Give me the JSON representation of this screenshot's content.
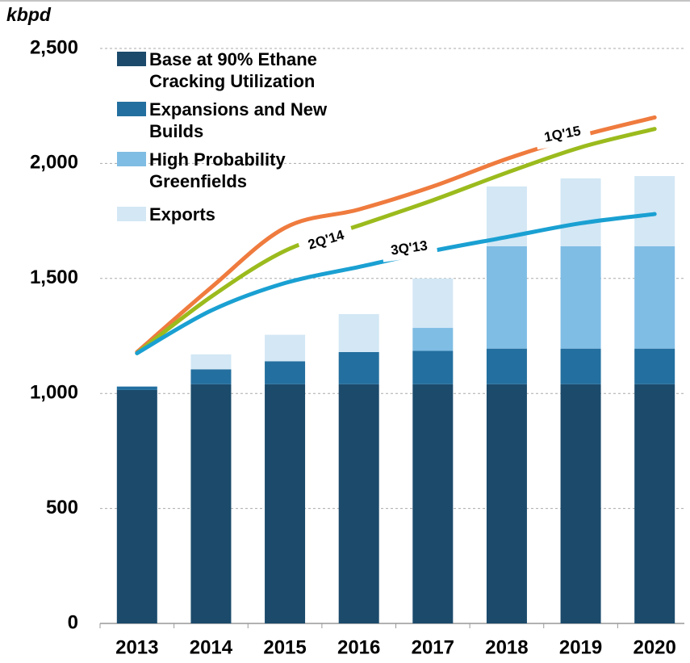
{
  "chart_data": {
    "type": "bar",
    "stacked": true,
    "y_label": "kbpd",
    "categories": [
      "2013",
      "2014",
      "2015",
      "2016",
      "2017",
      "2018",
      "2019",
      "2020"
    ],
    "series": [
      {
        "name": "Base at 90% Ethane Cracking Utilization",
        "color": "#1b4a6b",
        "values": [
          1015,
          1040,
          1040,
          1040,
          1040,
          1040,
          1040,
          1040
        ]
      },
      {
        "name": "Expansions and New Builds",
        "color": "#236f9f",
        "values": [
          15,
          65,
          100,
          140,
          145,
          155,
          155,
          155
        ]
      },
      {
        "name": "High Probability Greenfields",
        "color": "#7fbde4",
        "values": [
          0,
          0,
          0,
          0,
          100,
          445,
          445,
          445
        ]
      },
      {
        "name": "Exports",
        "color": "#d3e7f5",
        "values": [
          0,
          65,
          115,
          165,
          215,
          260,
          295,
          305
        ]
      }
    ],
    "lines": [
      {
        "name": "1Q'15",
        "color": "#ef7b3e",
        "values": [
          1180,
          1460,
          1720,
          1800,
          1900,
          2020,
          2120,
          2200
        ]
      },
      {
        "name": "2Q'14",
        "color": "#9bbb1d",
        "values": [
          1175,
          1420,
          1620,
          1730,
          1840,
          1960,
          2070,
          2150
        ]
      },
      {
        "name": "3Q'13",
        "color": "#1aa0d2",
        "values": [
          1175,
          1360,
          1480,
          1550,
          1620,
          1680,
          1740,
          1780
        ]
      }
    ],
    "ylim": [
      0,
      2500
    ],
    "yticks": [
      0,
      500,
      {
        "value": 1000,
        "label": "1,000"
      },
      {
        "value": 1500,
        "label": "1,500"
      },
      {
        "value": 2000,
        "label": "2,000"
      },
      {
        "value": 2500,
        "label": "2,500"
      }
    ],
    "grid": true,
    "legend": "upper left"
  }
}
